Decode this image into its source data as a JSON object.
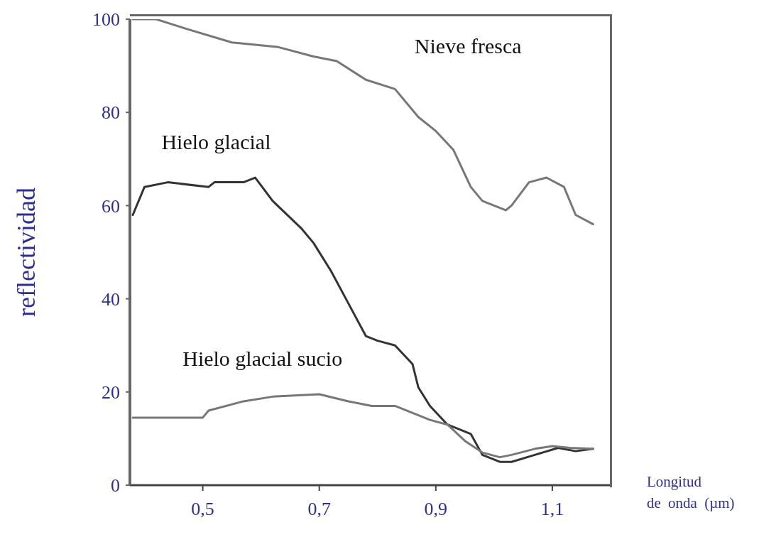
{
  "chart_data": {
    "type": "line",
    "ylabel": "reflectividad",
    "xlabel": "Longitud de onda (µm)",
    "xlim": [
      0.375,
      1.2
    ],
    "xticks": [
      {
        "value": 0.5,
        "label": "0,5"
      },
      {
        "value": 0.7,
        "label": "0,7"
      },
      {
        "value": 0.9,
        "label": "0,9"
      },
      {
        "value": 1.1,
        "label": "1,1"
      }
    ],
    "ylim": [
      0,
      100
    ],
    "yticks": [
      0,
      20,
      40,
      60,
      80,
      100
    ],
    "grid": false,
    "legend": false,
    "marker": "none",
    "line_style": "solid",
    "series": [
      {
        "name": "Nieve fresca",
        "color": "#777777",
        "x": [
          0.38,
          0.42,
          0.47,
          0.55,
          0.63,
          0.69,
          0.73,
          0.78,
          0.83,
          0.87,
          0.9,
          0.93,
          0.96,
          0.98,
          1.02,
          1.03,
          1.06,
          1.09,
          1.12,
          1.14,
          1.17
        ],
        "values": [
          100,
          100,
          98,
          95,
          94,
          92,
          91,
          87,
          85,
          79,
          76,
          72,
          64,
          61,
          59,
          60,
          65,
          66,
          64,
          58,
          56
        ]
      },
      {
        "name": "Hielo glacial",
        "color": "#333333",
        "x": [
          0.38,
          0.4,
          0.44,
          0.51,
          0.52,
          0.57,
          0.59,
          0.62,
          0.67,
          0.69,
          0.72,
          0.75,
          0.78,
          0.8,
          0.83,
          0.86,
          0.87,
          0.89,
          0.92,
          0.96,
          0.98,
          1.01,
          1.03,
          1.07,
          1.11,
          1.14,
          1.17
        ],
        "values": [
          58,
          64,
          65,
          64,
          65,
          65,
          66,
          61,
          55,
          52,
          46,
          39,
          32,
          31,
          30,
          26,
          21,
          17,
          13,
          11,
          6.5,
          5,
          5,
          6.5,
          8,
          7.3,
          7.8
        ]
      },
      {
        "name": "Hielo glacial sucio",
        "color": "#777777",
        "x": [
          0.38,
          0.5,
          0.51,
          0.57,
          0.62,
          0.7,
          0.75,
          0.79,
          0.83,
          0.89,
          0.92,
          0.95,
          0.98,
          1.01,
          1.03,
          1.07,
          1.1,
          1.13,
          1.17
        ],
        "values": [
          14.5,
          14.5,
          16,
          18,
          19,
          19.5,
          18,
          17,
          17,
          14,
          13,
          9.5,
          7,
          6,
          6.5,
          7.8,
          8.4,
          8,
          7.8
        ]
      }
    ]
  }
}
